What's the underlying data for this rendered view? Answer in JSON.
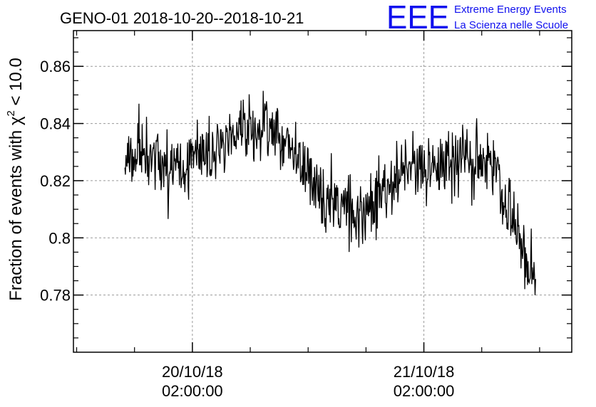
{
  "logo": {
    "mark": "EEE",
    "line1": "Extreme Energy Events",
    "line2": "La Scienza nelle Scuole",
    "color": "#1010ee"
  },
  "chart_data": {
    "type": "line",
    "title": "GENO-01 2018-10-20--2018-10-21",
    "xlabel": "",
    "ylabel": "Fraction of events with χ² < 10.0",
    "ylabel_parts": {
      "before": "Fraction of events with χ",
      "sup": "2",
      "after": " < 10.0"
    },
    "ylim": [
      0.76,
      0.8725
    ],
    "xlim": [
      "2018-10-19 13:40",
      "2018-10-21 17:20"
    ],
    "y_ticks": [
      {
        "value": 0.78,
        "label": "0.78"
      },
      {
        "value": 0.8,
        "label": "0.8"
      },
      {
        "value": 0.82,
        "label": "0.82"
      },
      {
        "value": 0.84,
        "label": "0.84"
      },
      {
        "value": 0.86,
        "label": "0.86"
      }
    ],
    "x_ticks": [
      {
        "value": "2018-10-20 02:00",
        "date_label": "20/10/18",
        "time_label": "02:00:00"
      },
      {
        "value": "2018-10-21 02:00",
        "date_label": "21/10/18",
        "time_label": "02:00:00"
      }
    ],
    "grid": true,
    "line_color": "#000000",
    "series": [
      {
        "x": [
          "2018-10-19 19:00",
          "2018-10-19 21:00",
          "2018-10-19 23:00",
          "2018-10-20 01:00",
          "2018-10-20 03:00",
          "2018-10-20 05:00",
          "2018-10-20 07:00",
          "2018-10-20 09:00",
          "2018-10-20 11:00",
          "2018-10-20 13:00",
          "2018-10-20 15:00",
          "2018-10-20 17:00",
          "2018-10-20 19:00",
          "2018-10-20 21:00",
          "2018-10-20 23:00",
          "2018-10-21 01:00",
          "2018-10-21 03:00",
          "2018-10-21 05:00",
          "2018-10-21 07:00",
          "2018-10-21 09:00",
          "2018-10-21 11:00",
          "2018-10-21 13:00"
        ],
        "y": [
          0.826,
          0.828,
          0.827,
          0.825,
          0.829,
          0.833,
          0.838,
          0.838,
          0.836,
          0.829,
          0.816,
          0.812,
          0.808,
          0.812,
          0.822,
          0.823,
          0.826,
          0.826,
          0.827,
          0.829,
          0.807,
          0.789
        ]
      }
    ]
  }
}
